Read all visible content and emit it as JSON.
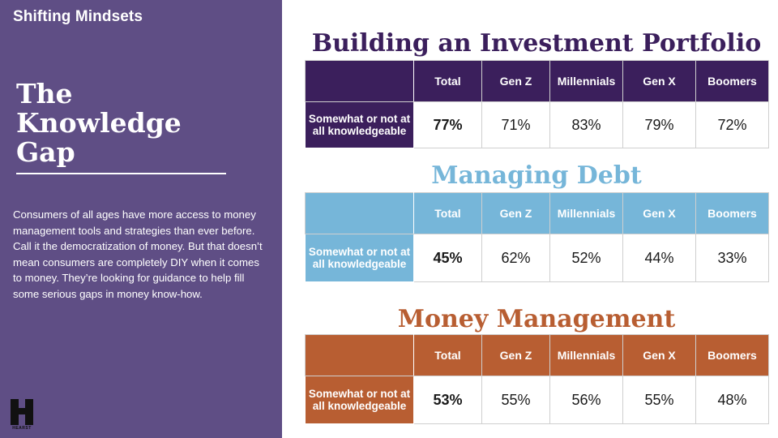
{
  "sidebar": {
    "eyebrow": "Shifting Mindsets",
    "title_lines": [
      "The",
      "Knowledge",
      "Gap"
    ],
    "body": "Consumers of all ages have more access to money management tools and strategies than ever before. Call it the democratization of money. But that doesn’t mean consumers are completely DIY when it comes to money. They’re looking for guidance to help fill some serious gaps in money know-how.",
    "logo_letter": "H",
    "logo_word": "HEARST"
  },
  "columns": [
    "Total",
    "Gen Z",
    "Millennials",
    "Gen X",
    "Boomers"
  ],
  "row_label": "Somewhat or not at all knowledgeable",
  "sections": [
    {
      "title": "Building an Investment Portfolio",
      "color": "#3b1f5c",
      "values": [
        "77%",
        "71%",
        "83%",
        "79%",
        "72%"
      ]
    },
    {
      "title": "Managing Debt",
      "color": "#76b6d9",
      "values": [
        "45%",
        "62%",
        "52%",
        "44%",
        "33%"
      ]
    },
    {
      "title": "Money Management",
      "color": "#b85e32",
      "values": [
        "53%",
        "55%",
        "56%",
        "55%",
        "48%"
      ]
    }
  ]
}
